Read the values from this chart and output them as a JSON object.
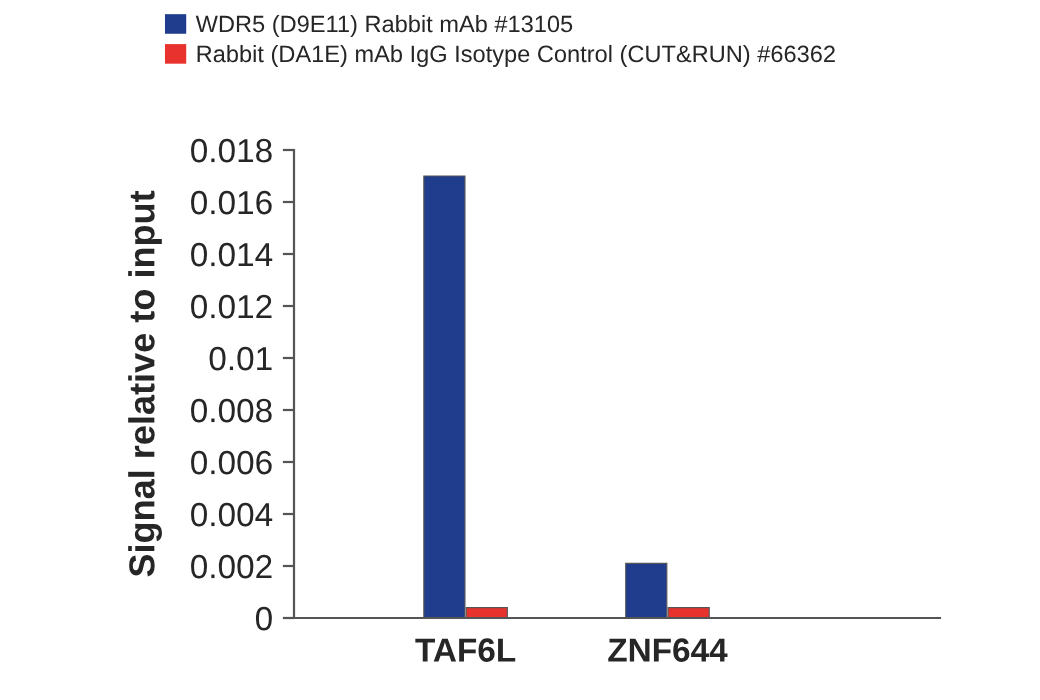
{
  "chart_data": {
    "type": "bar",
    "ylabel": "Signal relative to input",
    "categories": [
      "TAF6L",
      "ZNF644"
    ],
    "series": [
      {
        "name": "WDR5 (D9E11) Rabbit mAb #13105",
        "color": "#1f3d8c",
        "values": [
          0.017,
          0.0021
        ]
      },
      {
        "name": "Rabbit (DA1E) mAb IgG Isotype Control (CUT&RUN) #66362",
        "color": "#e8322e",
        "values": [
          0.0004,
          0.0004
        ]
      }
    ],
    "ylim": [
      0,
      0.018
    ],
    "yticks": [
      0,
      0.002,
      0.004,
      0.006,
      0.008,
      0.01,
      0.012,
      0.014,
      0.016,
      0.018
    ],
    "grid": false,
    "legend": "top left"
  }
}
